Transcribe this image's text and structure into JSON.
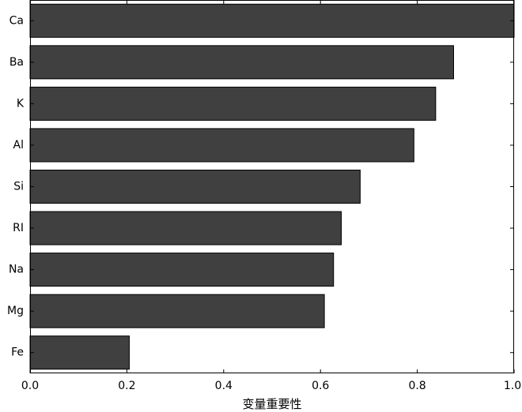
{
  "chart_data": {
    "type": "bar",
    "orientation": "horizontal",
    "title": "",
    "xlabel": "变量重要性",
    "ylabel": "",
    "categories": [
      "Ca",
      "Ba",
      "K",
      "Al",
      "Si",
      "RI",
      "Na",
      "Mg",
      "Fe"
    ],
    "values": [
      1.0,
      0.875,
      0.838,
      0.793,
      0.682,
      0.643,
      0.627,
      0.608,
      0.205
    ],
    "xlim": [
      0,
      1.0
    ],
    "xticks": [
      0.0,
      0.2,
      0.4,
      0.6,
      0.8,
      1.0
    ],
    "xtick_labels": [
      "0.0",
      "0.2",
      "0.4",
      "0.6",
      "0.8",
      "1.0"
    ],
    "grid": false,
    "legend": "none",
    "bar_color": "#404040",
    "bar_edge_color": "#000000"
  }
}
